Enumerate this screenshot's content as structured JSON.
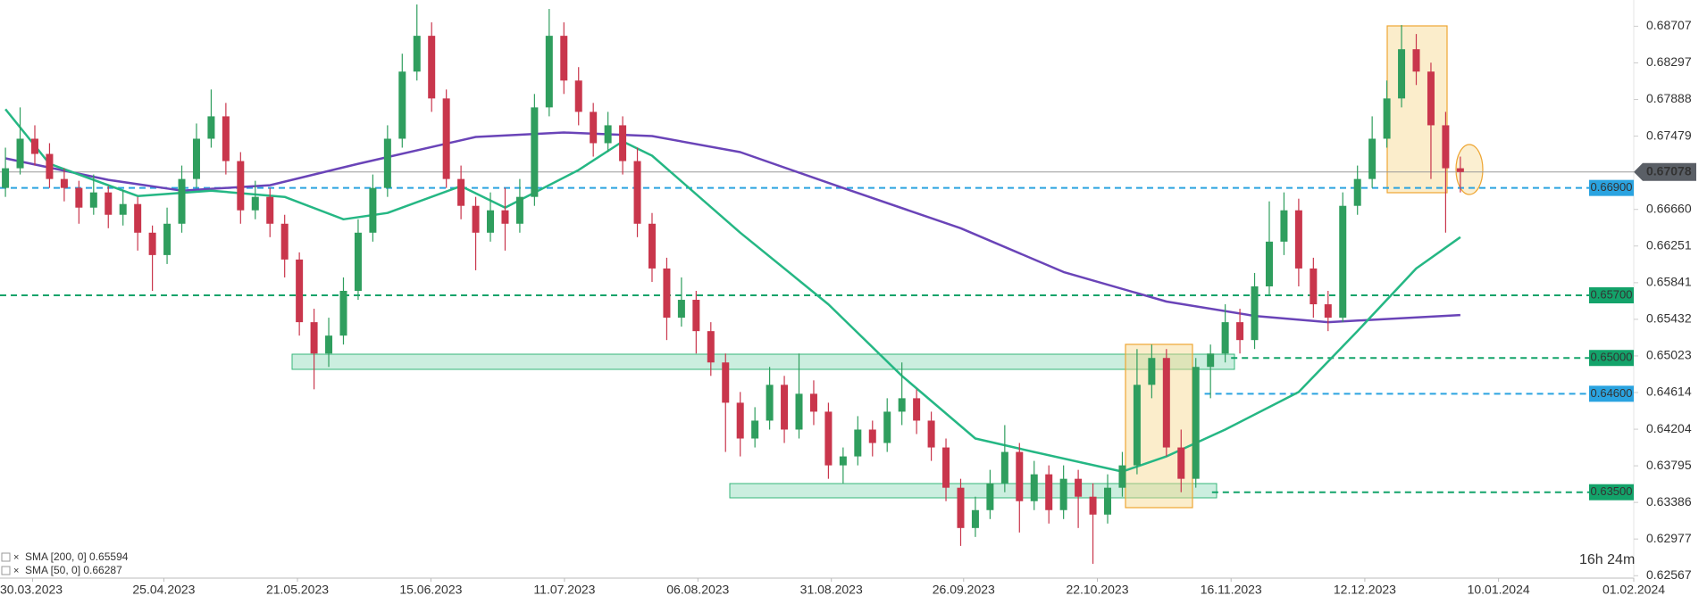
{
  "chart_data": {
    "type": "candlestick",
    "up_color": "#2f9e5e",
    "down_color": "#c9364c",
    "xlim": [
      -0.37,
      110.8
    ],
    "ylim": [
      0.6254,
      0.69
    ],
    "xticks": [
      {
        "value": 1.85,
        "label": "30.03.2023"
      },
      {
        "value": 10.78,
        "label": "25.04.2023"
      },
      {
        "value": 19.87,
        "label": "21.05.2023"
      },
      {
        "value": 28.95,
        "label": "15.06.2023"
      },
      {
        "value": 38.04,
        "label": "11.07.2023"
      },
      {
        "value": 47.12,
        "label": "06.08.2023"
      },
      {
        "value": 56.2,
        "label": "31.08.2023"
      },
      {
        "value": 65.2,
        "label": "26.09.2023"
      },
      {
        "value": 74.3,
        "label": "22.10.2023"
      },
      {
        "value": 83.4,
        "label": "16.11.2023"
      },
      {
        "value": 92.5,
        "label": "12.12.2023"
      },
      {
        "value": 101.6,
        "label": "10.01.2024"
      },
      {
        "value": 110.8,
        "label": "01.02.2024"
      }
    ],
    "yticks": [
      0.68707,
      0.68297,
      0.67888,
      0.67479,
      {
        "value": 0.6666,
        "label": "0.66660"
      },
      0.66251,
      0.65841,
      0.65432,
      0.65023,
      0.64614,
      0.64204,
      0.63795,
      0.63386,
      0.62977,
      0.62567
    ],
    "ohlc": [
      [
        0.669,
        0.6735,
        0.668,
        0.6712
      ],
      [
        0.6712,
        0.678,
        0.6705,
        0.6745
      ],
      [
        0.6745,
        0.676,
        0.6715,
        0.6728
      ],
      [
        0.6728,
        0.674,
        0.669,
        0.67
      ],
      [
        0.67,
        0.6712,
        0.6675,
        0.669
      ],
      [
        0.669,
        0.6698,
        0.665,
        0.6668
      ],
      [
        0.6668,
        0.6705,
        0.666,
        0.6685
      ],
      [
        0.6685,
        0.6692,
        0.6645,
        0.666
      ],
      [
        0.666,
        0.6688,
        0.6648,
        0.6672
      ],
      [
        0.6672,
        0.668,
        0.662,
        0.664
      ],
      [
        0.664,
        0.6648,
        0.6575,
        0.6615
      ],
      [
        0.6615,
        0.6668,
        0.6605,
        0.665
      ],
      [
        0.665,
        0.6715,
        0.664,
        0.67
      ],
      [
        0.67,
        0.6762,
        0.669,
        0.6745
      ],
      [
        0.6745,
        0.68,
        0.6735,
        0.677
      ],
      [
        0.677,
        0.6785,
        0.6705,
        0.672
      ],
      [
        0.672,
        0.673,
        0.665,
        0.6665
      ],
      [
        0.6665,
        0.6698,
        0.6655,
        0.668
      ],
      [
        0.668,
        0.669,
        0.6635,
        0.665
      ],
      [
        0.665,
        0.666,
        0.659,
        0.661
      ],
      [
        0.661,
        0.6618,
        0.6525,
        0.654
      ],
      [
        0.654,
        0.6555,
        0.6465,
        0.6505
      ],
      [
        0.6505,
        0.6545,
        0.649,
        0.6525
      ],
      [
        0.6525,
        0.659,
        0.6515,
        0.6575
      ],
      [
        0.6575,
        0.6655,
        0.6565,
        0.664
      ],
      [
        0.664,
        0.6705,
        0.663,
        0.669
      ],
      [
        0.669,
        0.676,
        0.668,
        0.6745
      ],
      [
        0.6745,
        0.684,
        0.6735,
        0.682
      ],
      [
        0.682,
        0.6895,
        0.681,
        0.686
      ],
      [
        0.686,
        0.6875,
        0.6775,
        0.679
      ],
      [
        0.679,
        0.68,
        0.669,
        0.67
      ],
      [
        0.67,
        0.6715,
        0.6655,
        0.667
      ],
      [
        0.667,
        0.668,
        0.6598,
        0.664
      ],
      [
        0.664,
        0.6685,
        0.663,
        0.6665
      ],
      [
        0.6665,
        0.669,
        0.662,
        0.665
      ],
      [
        0.665,
        0.67,
        0.664,
        0.668
      ],
      [
        0.668,
        0.6795,
        0.667,
        0.678
      ],
      [
        0.678,
        0.689,
        0.677,
        0.686
      ],
      [
        0.686,
        0.6875,
        0.6795,
        0.681
      ],
      [
        0.681,
        0.6825,
        0.676,
        0.6775
      ],
      [
        0.6775,
        0.6785,
        0.6725,
        0.674
      ],
      [
        0.674,
        0.6775,
        0.673,
        0.676
      ],
      [
        0.676,
        0.677,
        0.6705,
        0.672
      ],
      [
        0.672,
        0.6735,
        0.6635,
        0.665
      ],
      [
        0.665,
        0.6662,
        0.6585,
        0.66
      ],
      [
        0.66,
        0.6612,
        0.652,
        0.6545
      ],
      [
        0.6545,
        0.659,
        0.6535,
        0.6565
      ],
      [
        0.6565,
        0.6575,
        0.6505,
        0.653
      ],
      [
        0.653,
        0.654,
        0.648,
        0.6495
      ],
      [
        0.6495,
        0.6505,
        0.6395,
        0.645
      ],
      [
        0.645,
        0.6462,
        0.639,
        0.641
      ],
      [
        0.641,
        0.6445,
        0.64,
        0.643
      ],
      [
        0.643,
        0.649,
        0.642,
        0.647
      ],
      [
        0.647,
        0.648,
        0.6405,
        0.642
      ],
      [
        0.642,
        0.6505,
        0.641,
        0.646
      ],
      [
        0.646,
        0.6475,
        0.6425,
        0.644
      ],
      [
        0.644,
        0.645,
        0.6365,
        0.638
      ],
      [
        0.638,
        0.64,
        0.636,
        0.639
      ],
      [
        0.639,
        0.6435,
        0.638,
        0.642
      ],
      [
        0.642,
        0.643,
        0.639,
        0.6405
      ],
      [
        0.6405,
        0.6455,
        0.6395,
        0.644
      ],
      [
        0.644,
        0.6495,
        0.6425,
        0.6455
      ],
      [
        0.6455,
        0.6465,
        0.6415,
        0.643
      ],
      [
        0.643,
        0.644,
        0.6385,
        0.64
      ],
      [
        0.64,
        0.641,
        0.634,
        0.6355
      ],
      [
        0.6355,
        0.6365,
        0.629,
        0.631
      ],
      [
        0.631,
        0.6345,
        0.63,
        0.633
      ],
      [
        0.633,
        0.6375,
        0.632,
        0.636
      ],
      [
        0.636,
        0.6425,
        0.635,
        0.6395
      ],
      [
        0.6395,
        0.6405,
        0.6305,
        0.634
      ],
      [
        0.634,
        0.6385,
        0.633,
        0.637
      ],
      [
        0.637,
        0.638,
        0.6315,
        0.633
      ],
      [
        0.633,
        0.638,
        0.632,
        0.6365
      ],
      [
        0.6365,
        0.6375,
        0.631,
        0.6345
      ],
      [
        0.6345,
        0.636,
        0.627,
        0.6325
      ],
      [
        0.6325,
        0.637,
        0.6315,
        0.6355
      ],
      [
        0.6355,
        0.6395,
        0.6345,
        0.638
      ],
      [
        0.638,
        0.651,
        0.637,
        0.647
      ],
      [
        0.647,
        0.6515,
        0.6455,
        0.65
      ],
      [
        0.65,
        0.651,
        0.639,
        0.64
      ],
      [
        0.64,
        0.642,
        0.635,
        0.6365
      ],
      [
        0.6365,
        0.65,
        0.6355,
        0.649
      ],
      [
        0.649,
        0.6515,
        0.6455,
        0.6505
      ],
      [
        0.6505,
        0.656,
        0.6495,
        0.654
      ],
      [
        0.654,
        0.6555,
        0.6505,
        0.652
      ],
      [
        0.652,
        0.6595,
        0.651,
        0.658
      ],
      [
        0.658,
        0.6675,
        0.657,
        0.663
      ],
      [
        0.663,
        0.6685,
        0.6615,
        0.6665
      ],
      [
        0.6665,
        0.6678,
        0.658,
        0.66
      ],
      [
        0.66,
        0.6612,
        0.6545,
        0.656
      ],
      [
        0.656,
        0.6575,
        0.653,
        0.6545
      ],
      [
        0.6545,
        0.6685,
        0.654,
        0.667
      ],
      [
        0.667,
        0.6715,
        0.666,
        0.67
      ],
      [
        0.67,
        0.677,
        0.669,
        0.6745
      ],
      [
        0.6745,
        0.681,
        0.6735,
        0.679
      ],
      [
        0.679,
        0.6872,
        0.678,
        0.6845
      ],
      [
        0.6845,
        0.6862,
        0.6805,
        0.682
      ],
      [
        0.682,
        0.683,
        0.67,
        0.676
      ],
      [
        0.676,
        0.6775,
        0.664,
        0.6712
      ],
      [
        0.6712,
        0.6725,
        0.6685,
        0.67078
      ]
    ],
    "series": [
      {
        "name": "SMA [200, 0] 0.65594",
        "color": "#6a44b8",
        "x": [
          0,
          7,
          12,
          18,
          24,
          32,
          38,
          44,
          50,
          57,
          65,
          72,
          79,
          85,
          90,
          99
        ],
        "values": [
          0.6723,
          0.6699,
          0.6687,
          0.6693,
          0.6717,
          0.6747,
          0.6752,
          0.6748,
          0.673,
          0.669,
          0.6645,
          0.6596,
          0.6563,
          0.6547,
          0.654,
          0.6548
        ]
      },
      {
        "name": "SMA [50, 0] 0.66287",
        "color": "#25b784",
        "x": [
          0,
          3,
          9,
          14,
          19,
          23,
          26,
          31,
          34,
          39,
          42,
          44,
          50,
          56,
          61,
          66,
          70,
          76,
          79,
          83,
          88,
          92,
          96,
          99
        ],
        "values": [
          0.6778,
          0.6717,
          0.6681,
          0.6687,
          0.668,
          0.6655,
          0.6662,
          0.6692,
          0.6668,
          0.671,
          0.6742,
          0.6726,
          0.664,
          0.656,
          0.648,
          0.641,
          0.6395,
          0.6373,
          0.639,
          0.642,
          0.6462,
          0.653,
          0.66,
          0.6635
        ]
      }
    ],
    "levels": [
      {
        "value": 0.669,
        "label": "0.66900",
        "color": "#2aa3e0",
        "from": -0.37
      },
      {
        "value": 0.657,
        "label": "0.65700",
        "color": "#13a36a",
        "from": -0.37
      },
      {
        "value": 0.65,
        "label": "0.65000",
        "color": "#13a36a",
        "from": 83.4
      },
      {
        "value": 0.646,
        "label": "0.64600",
        "color": "#2aa3e0",
        "from": 81.6
      },
      {
        "value": 0.635,
        "label": "0.63500",
        "color": "#13a36a",
        "from": 82.1
      }
    ],
    "current_price": {
      "value": 0.67078,
      "label": "0.67078",
      "color": "#5a5f66"
    },
    "countdown": "16h 24m"
  }
}
